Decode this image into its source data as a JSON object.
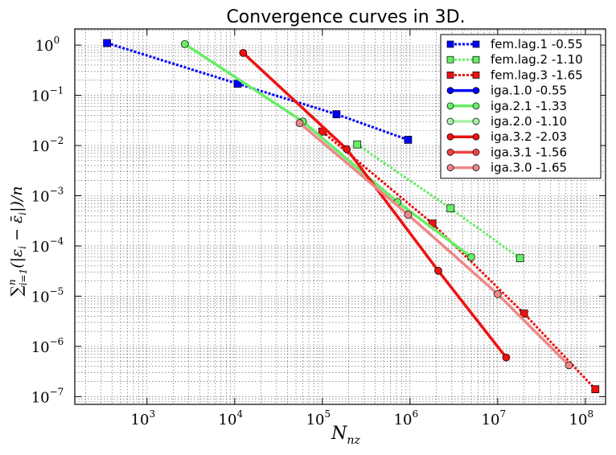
{
  "chart_data": {
    "type": "line",
    "title": "Convergence curves in 3D.",
    "xlabel": "N_nz",
    "ylabel": "∑_{i=1}^{n}(|ε_i − ε̄_i|)/n",
    "xscale": "log",
    "yscale": "log",
    "xlim": [
      150,
      170000000.0
    ],
    "ylim": [
      7e-08,
      2.1
    ],
    "x_ticks": [
      {
        "exp": "3",
        "value": 1000
      },
      {
        "exp": "4",
        "value": 10000
      },
      {
        "exp": "5",
        "value": 100000
      },
      {
        "exp": "6",
        "value": 1000000
      },
      {
        "exp": "7",
        "value": 10000000
      },
      {
        "exp": "8",
        "value": 100000000
      }
    ],
    "y_ticks": [
      {
        "exp": "0",
        "value": 1
      },
      {
        "exp": "−1",
        "value": 0.1
      },
      {
        "exp": "−2",
        "value": 0.01
      },
      {
        "exp": "−3",
        "value": 0.001
      },
      {
        "exp": "−4",
        "value": 0.0001
      },
      {
        "exp": "−5",
        "value": 1e-05
      },
      {
        "exp": "−6",
        "value": 1e-06
      },
      {
        "exp": "−7",
        "value": 1e-07
      }
    ],
    "grid": true,
    "legend_position": "top-right",
    "series": [
      {
        "name": "fem.lag.1 -0.55",
        "color": "#0000ff",
        "marker": "square",
        "dash": "dotted",
        "width": 3,
        "x": [
          350,
          10800,
          145000,
          950000
        ],
        "y": [
          1.1,
          0.17,
          0.042,
          0.013
        ]
      },
      {
        "name": "fem.lag.2 -1.10",
        "color": "#66ee66",
        "marker": "square",
        "dash": "dotted",
        "width": 3,
        "x": [
          250000,
          2900000,
          18000000
        ],
        "y": [
          0.0105,
          0.00056,
          5.7e-05
        ]
      },
      {
        "name": "fem.lag.3 -1.65",
        "color": "#ee1111",
        "marker": "square",
        "dash": "dotted",
        "width": 3,
        "x": [
          100000,
          1800000,
          20000000,
          130000000
        ],
        "y": [
          0.019,
          0.00028,
          4.5e-06,
          1.4e-07
        ]
      },
      {
        "name": "iga.1.0 -0.55",
        "color": "#0000ff",
        "marker": "circle",
        "dash": "solid",
        "width": 3.5,
        "x": [],
        "y": []
      },
      {
        "name": "iga.2.1 -1.33",
        "color": "#66ee66",
        "marker": "circle",
        "dash": "solid",
        "width": 3.5,
        "x": [
          2700,
          60000,
          720000,
          5000000
        ],
        "y": [
          1.05,
          0.03,
          0.00075,
          6e-05
        ]
      },
      {
        "name": "iga.2.0 -1.10",
        "color": "#aaeeaa",
        "marker": "circle",
        "dash": "solid",
        "width": 3.5,
        "x": [],
        "y": []
      },
      {
        "name": "iga.3.2 -2.03",
        "color": "#ee1111",
        "marker": "circle",
        "dash": "solid",
        "width": 3.5,
        "x": [
          12500,
          190000,
          2100000,
          12500000
        ],
        "y": [
          0.7,
          0.0085,
          3.2e-05,
          6e-07
        ]
      },
      {
        "name": "iga.3.1 -1.56",
        "color": "#ee4444",
        "marker": "circle",
        "dash": "solid",
        "width": 3.5,
        "x": [],
        "y": []
      },
      {
        "name": "iga.3.0 -1.65",
        "color": "#ee8888",
        "marker": "circle",
        "dash": "solid",
        "width": 3.5,
        "x": [
          55000,
          950000,
          10000000,
          65000000
        ],
        "y": [
          0.028,
          0.00042,
          1.1e-05,
          4.2e-07
        ]
      }
    ]
  }
}
